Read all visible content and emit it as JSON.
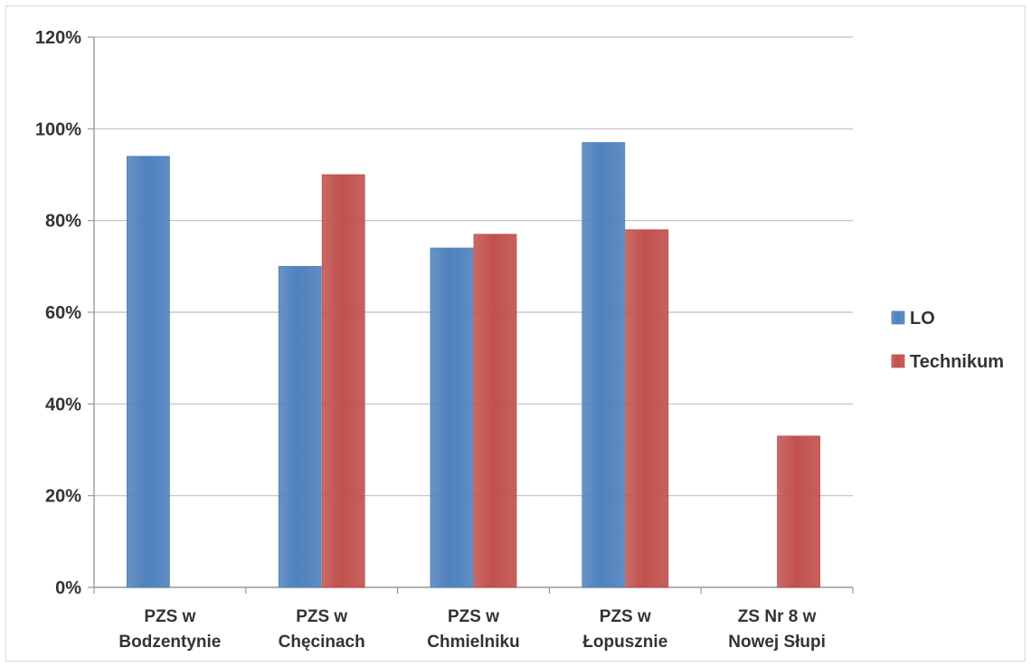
{
  "chart_data": {
    "type": "bar",
    "categories": [
      [
        "PZS w",
        "Bodzentynie"
      ],
      [
        "PZS w",
        "Chęcinach"
      ],
      [
        "PZS w",
        "Chmielniku"
      ],
      [
        "PZS w",
        "Łopusznie"
      ],
      [
        "ZS Nr 8 w",
        "Nowej Słupi"
      ]
    ],
    "series": [
      {
        "name": "LO",
        "values": [
          0.94,
          0.7,
          0.74,
          0.97,
          null
        ],
        "color": "#4f81bd"
      },
      {
        "name": "Technikum",
        "values": [
          null,
          0.9,
          0.77,
          0.78,
          0.33
        ],
        "color": "#c0504d"
      }
    ],
    "ylim": [
      0,
      1.2
    ],
    "yticks": [
      0,
      0.2,
      0.4,
      0.6,
      0.8,
      1.0,
      1.2
    ],
    "ytick_labels": [
      "0%",
      "20%",
      "40%",
      "60%",
      "80%",
      "100%",
      "120%"
    ],
    "grid": true,
    "legend_position": "right"
  }
}
